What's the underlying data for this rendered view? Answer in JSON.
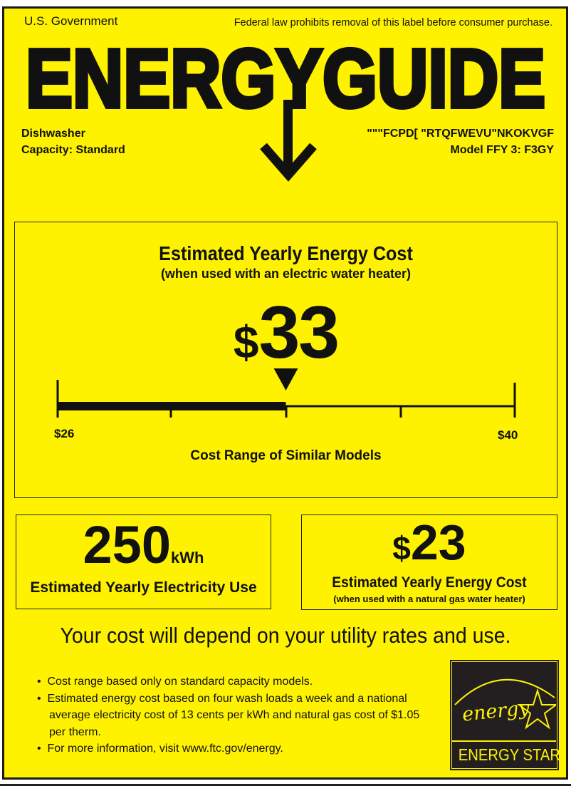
{
  "header": {
    "government": "U.S. Government",
    "notice": "Federal law prohibits removal of this label before consumer purchase.",
    "title": "ENERGYGUIDE"
  },
  "appliance": {
    "type": "Dishwasher",
    "capacity": "Capacity: Standard",
    "manufacturer": "\"\"\"FCPD[ \"RTQFWEVU\"NKOKVGF",
    "model": "Model FFY 3: F3GY"
  },
  "main_cost": {
    "title": "Estimated Yearly Energy Cost",
    "subtitle": "(when used with an electric water heater)",
    "currency": "$",
    "value": "33",
    "range_min": "$26",
    "range_max": "$40",
    "range_label": "Cost Range of Similar Models",
    "min": 26,
    "max": 40,
    "marker": 33
  },
  "electricity": {
    "value": "250",
    "unit": "kWh",
    "label": "Estimated Yearly Electricity Use"
  },
  "gas_cost": {
    "currency": "$",
    "value": "23",
    "title": "Estimated Yearly Energy Cost",
    "subtitle": "(when used with a natural gas water heater)"
  },
  "disclaimer": "Your cost will depend on your utility rates and use.",
  "notes": [
    "Cost range based only on standard capacity models.",
    "Estimated energy cost based on four wash loads a week and a national",
    "average electricity cost of 13 cents per kWh and natural gas cost of $1.05",
    "per therm.",
    "For more information, visit www.ftc.gov/energy."
  ],
  "energy_star": {
    "script": "energy",
    "label": "ENERGY STAR"
  },
  "colors": {
    "background": "#fff200",
    "ink": "#111111",
    "logo_bg": "#231f20"
  }
}
